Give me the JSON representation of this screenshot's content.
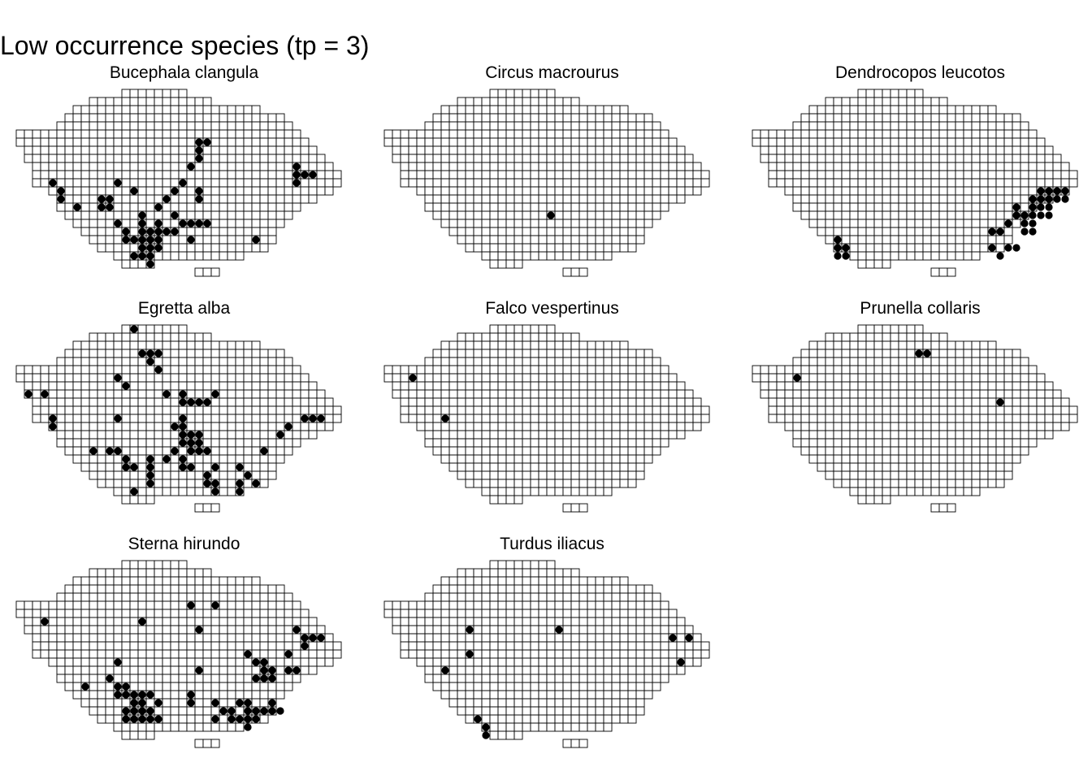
{
  "title": "Low occurrence species (tp = 3)",
  "colors": {
    "background": "#ffffff",
    "grid_stroke": "#000000",
    "occurrence_dot": "#000000"
  },
  "grid": {
    "columns": 40,
    "rows": 23,
    "row_extents": [
      [
        13,
        20
      ],
      [
        9,
        23
      ],
      [
        7,
        29
      ],
      [
        6,
        32
      ],
      [
        5,
        33
      ],
      [
        0,
        34
      ],
      [
        0,
        35
      ],
      [
        1,
        36
      ],
      [
        1,
        37
      ],
      [
        2,
        38
      ],
      [
        2,
        39
      ],
      [
        2,
        39
      ],
      [
        4,
        38
      ],
      [
        5,
        36
      ],
      [
        5,
        34
      ],
      [
        6,
        33
      ],
      [
        7,
        32
      ],
      [
        8,
        31
      ],
      [
        9,
        31
      ],
      [
        10,
        30
      ],
      [
        12,
        27
      ],
      [
        13,
        16
      ],
      [
        22,
        24
      ]
    ]
  },
  "panels": [
    {
      "species": "Bucephala clangula",
      "occurrences": [
        [
          22,
          6
        ],
        [
          23,
          6
        ],
        [
          22,
          7
        ],
        [
          22,
          8
        ],
        [
          21,
          9
        ],
        [
          34,
          9
        ],
        [
          34,
          10
        ],
        [
          35,
          10
        ],
        [
          36,
          10
        ],
        [
          4,
          11
        ],
        [
          12,
          11
        ],
        [
          34,
          11
        ],
        [
          20,
          11
        ],
        [
          5,
          12
        ],
        [
          14,
          12
        ],
        [
          19,
          12
        ],
        [
          22,
          12
        ],
        [
          5,
          13
        ],
        [
          10,
          13
        ],
        [
          11,
          13
        ],
        [
          18,
          13
        ],
        [
          22,
          13
        ],
        [
          7,
          14
        ],
        [
          10,
          14
        ],
        [
          11,
          14
        ],
        [
          17,
          14
        ],
        [
          15,
          15
        ],
        [
          19,
          15
        ],
        [
          12,
          16
        ],
        [
          15,
          16
        ],
        [
          17,
          16
        ],
        [
          20,
          16
        ],
        [
          21,
          16
        ],
        [
          22,
          16
        ],
        [
          23,
          16
        ],
        [
          13,
          17
        ],
        [
          15,
          17
        ],
        [
          16,
          17
        ],
        [
          18,
          17
        ],
        [
          19,
          17
        ],
        [
          17,
          17
        ],
        [
          13,
          18
        ],
        [
          14,
          18
        ],
        [
          15,
          18
        ],
        [
          16,
          18
        ],
        [
          17,
          18
        ],
        [
          21,
          18
        ],
        [
          29,
          18
        ],
        [
          15,
          19
        ],
        [
          16,
          19
        ],
        [
          17,
          19
        ],
        [
          14,
          20
        ],
        [
          15,
          20
        ],
        [
          16,
          20
        ],
        [
          16,
          21
        ]
      ]
    },
    {
      "species": "Circus macrourus",
      "occurrences": [
        [
          20,
          15
        ]
      ]
    },
    {
      "species": "Dendrocopos leucotos",
      "occurrences": [
        [
          35,
          12
        ],
        [
          36,
          12
        ],
        [
          37,
          12
        ],
        [
          38,
          12
        ],
        [
          34,
          13
        ],
        [
          35,
          13
        ],
        [
          36,
          13
        ],
        [
          37,
          13
        ],
        [
          38,
          13
        ],
        [
          32,
          14
        ],
        [
          34,
          14
        ],
        [
          35,
          14
        ],
        [
          36,
          14
        ],
        [
          32,
          15
        ],
        [
          33,
          15
        ],
        [
          34,
          15
        ],
        [
          35,
          15
        ],
        [
          36,
          15
        ],
        [
          31,
          16
        ],
        [
          33,
          16
        ],
        [
          34,
          16
        ],
        [
          29,
          17
        ],
        [
          30,
          17
        ],
        [
          33,
          17
        ],
        [
          34,
          17
        ],
        [
          10,
          18
        ],
        [
          10,
          19
        ],
        [
          11,
          19
        ],
        [
          31,
          19
        ],
        [
          32,
          19
        ],
        [
          10,
          20
        ],
        [
          11,
          20
        ],
        [
          30,
          20
        ],
        [
          29,
          19
        ]
      ]
    },
    {
      "species": "Egretta alba",
      "occurrences": [
        [
          14,
          0
        ],
        [
          15,
          3
        ],
        [
          16,
          3
        ],
        [
          17,
          3
        ],
        [
          16,
          4
        ],
        [
          17,
          5
        ],
        [
          12,
          6
        ],
        [
          13,
          7
        ],
        [
          1,
          8
        ],
        [
          3,
          8
        ],
        [
          18,
          8
        ],
        [
          20,
          8
        ],
        [
          24,
          8
        ],
        [
          20,
          9
        ],
        [
          21,
          9
        ],
        [
          22,
          9
        ],
        [
          23,
          9
        ],
        [
          4,
          11
        ],
        [
          12,
          11
        ],
        [
          20,
          11
        ],
        [
          35,
          11
        ],
        [
          36,
          11
        ],
        [
          37,
          11
        ],
        [
          4,
          12
        ],
        [
          19,
          12
        ],
        [
          20,
          12
        ],
        [
          33,
          12
        ],
        [
          21,
          13
        ],
        [
          22,
          13
        ],
        [
          20,
          13
        ],
        [
          32,
          13
        ],
        [
          20,
          14
        ],
        [
          21,
          14
        ],
        [
          22,
          14
        ],
        [
          9,
          15
        ],
        [
          11,
          15
        ],
        [
          12,
          15
        ],
        [
          19,
          15
        ],
        [
          21,
          15
        ],
        [
          22,
          15
        ],
        [
          23,
          15
        ],
        [
          30,
          15
        ],
        [
          13,
          16
        ],
        [
          16,
          16
        ],
        [
          18,
          16
        ],
        [
          20,
          16
        ],
        [
          13,
          17
        ],
        [
          14,
          17
        ],
        [
          16,
          17
        ],
        [
          20,
          17
        ],
        [
          21,
          17
        ],
        [
          24,
          17
        ],
        [
          27,
          17
        ],
        [
          16,
          18
        ],
        [
          23,
          18
        ],
        [
          28,
          18
        ],
        [
          16,
          19
        ],
        [
          23,
          19
        ],
        [
          24,
          19
        ],
        [
          27,
          19
        ],
        [
          29,
          19
        ],
        [
          14,
          20
        ],
        [
          24,
          20
        ],
        [
          27,
          20
        ]
      ]
    },
    {
      "species": "Falco vespertinus",
      "occurrences": [
        [
          3,
          6
        ],
        [
          7,
          11
        ]
      ]
    },
    {
      "species": "Prunella collaris",
      "occurrences": [
        [
          20,
          3
        ],
        [
          21,
          3
        ],
        [
          5,
          6
        ],
        [
          30,
          9
        ]
      ]
    },
    {
      "species": "Sterna hirundo",
      "occurrences": [
        [
          21,
          5
        ],
        [
          24,
          5
        ],
        [
          3,
          7
        ],
        [
          15,
          7
        ],
        [
          22,
          8
        ],
        [
          34,
          8
        ],
        [
          35,
          9
        ],
        [
          36,
          9
        ],
        [
          37,
          9
        ],
        [
          35,
          10
        ],
        [
          28,
          11
        ],
        [
          33,
          11
        ],
        [
          12,
          12
        ],
        [
          29,
          12
        ],
        [
          30,
          12
        ],
        [
          22,
          13
        ],
        [
          30,
          13
        ],
        [
          31,
          13
        ],
        [
          33,
          13
        ],
        [
          34,
          13
        ],
        [
          11,
          14
        ],
        [
          29,
          14
        ],
        [
          30,
          14
        ],
        [
          31,
          14
        ],
        [
          8,
          15
        ],
        [
          12,
          15
        ],
        [
          13,
          15
        ],
        [
          12,
          16
        ],
        [
          13,
          16
        ],
        [
          14,
          16
        ],
        [
          15,
          16
        ],
        [
          16,
          16
        ],
        [
          21,
          16
        ],
        [
          14,
          17
        ],
        [
          15,
          17
        ],
        [
          17,
          17
        ],
        [
          21,
          17
        ],
        [
          24,
          17
        ],
        [
          27,
          17
        ],
        [
          28,
          17
        ],
        [
          31,
          17
        ],
        [
          13,
          18
        ],
        [
          14,
          18
        ],
        [
          15,
          18
        ],
        [
          16,
          18
        ],
        [
          25,
          18
        ],
        [
          26,
          18
        ],
        [
          28,
          18
        ],
        [
          29,
          18
        ],
        [
          30,
          18
        ],
        [
          31,
          18
        ],
        [
          32,
          18
        ],
        [
          14,
          19
        ],
        [
          15,
          19
        ],
        [
          16,
          19
        ],
        [
          17,
          19
        ],
        [
          13,
          19
        ],
        [
          24,
          19
        ],
        [
          26,
          19
        ],
        [
          27,
          19
        ],
        [
          28,
          19
        ],
        [
          29,
          19
        ],
        [
          28,
          20
        ]
      ]
    },
    {
      "species": "Turdus iliacus",
      "occurrences": [
        [
          10,
          8
        ],
        [
          21,
          8
        ],
        [
          35,
          9
        ],
        [
          37,
          9
        ],
        [
          10,
          11
        ],
        [
          36,
          12
        ],
        [
          7,
          13
        ],
        [
          11,
          19
        ],
        [
          12,
          20
        ],
        [
          12,
          21
        ]
      ]
    }
  ]
}
